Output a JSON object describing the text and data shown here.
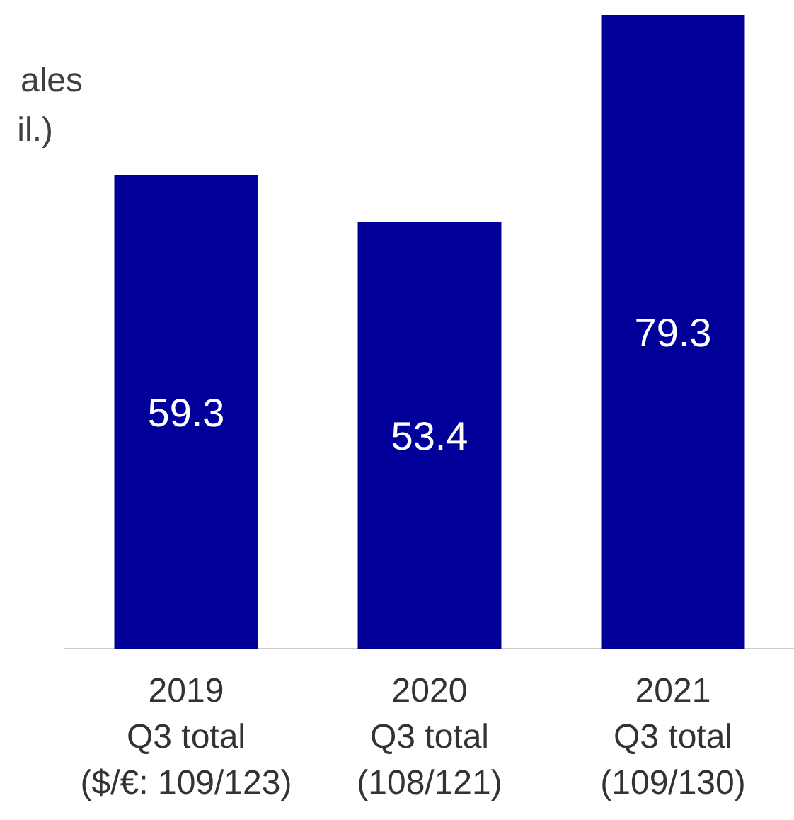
{
  "chart_data": {
    "type": "bar",
    "categories": [
      "2019\nQ3 total\n($/€: 109/123)",
      "2020\nQ3 total\n(108/121)",
      "2021\nQ3 total\n(109/130)"
    ],
    "values": [
      59.3,
      53.4,
      79.3
    ],
    "color": "#000099",
    "data_labels": true,
    "annotations": [
      "ales",
      "il.)"
    ]
  }
}
